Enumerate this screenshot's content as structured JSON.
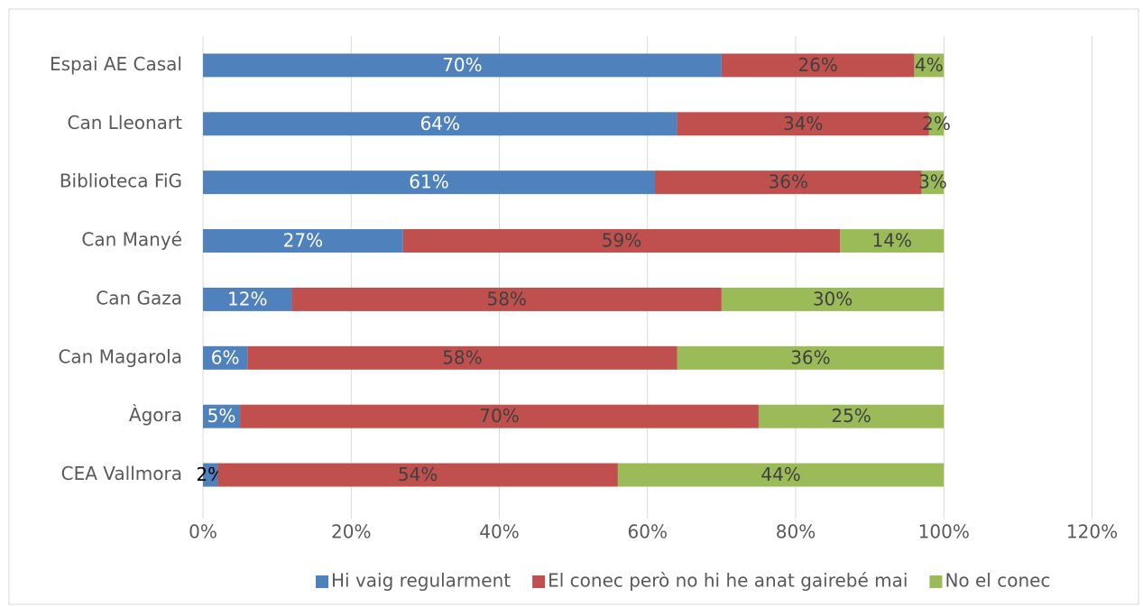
{
  "chart_data": {
    "type": "stacked_barh",
    "categories": [
      "Espai AE Casal",
      "Can Lleonart",
      "Biblioteca FiG",
      "Can Manyé",
      "Can Gaza",
      "Can Magarola",
      "Àgora",
      "CEA Vallmora"
    ],
    "series": [
      {
        "name": "Hi vaig regularment",
        "color": "#4f81bd",
        "values": [
          70,
          64,
          61,
          27,
          12,
          6,
          5,
          2
        ],
        "value_labels": [
          "70%",
          "64%",
          "61%",
          "27%",
          "12%",
          "6%",
          "5%",
          "2%"
        ]
      },
      {
        "name": "El conec però no hi he anat gairebé mai",
        "color": "#c0504d",
        "values": [
          26,
          34,
          36,
          59,
          58,
          58,
          70,
          54
        ],
        "value_labels": [
          "26%",
          "34%",
          "36%",
          "59%",
          "58%",
          "58%",
          "70%",
          "54%"
        ]
      },
      {
        "name": "No el conec",
        "color": "#9bbb59",
        "values": [
          4,
          2,
          3,
          14,
          30,
          36,
          25,
          44
        ],
        "value_labels": [
          "4%",
          "2%",
          "3%",
          "14%",
          "30%",
          "36%",
          "25%",
          "44%"
        ]
      }
    ],
    "xlim": [
      0,
      120
    ],
    "xticks": [
      {
        "value": 0,
        "label": "0%"
      },
      {
        "value": 20,
        "label": "20%"
      },
      {
        "value": 40,
        "label": "40%"
      },
      {
        "value": 60,
        "label": "60%"
      },
      {
        "value": 80,
        "label": "80%"
      },
      {
        "value": 100,
        "label": "100%"
      },
      {
        "value": 120,
        "label": "120%"
      }
    ],
    "grid": true,
    "legend": "bottom"
  }
}
